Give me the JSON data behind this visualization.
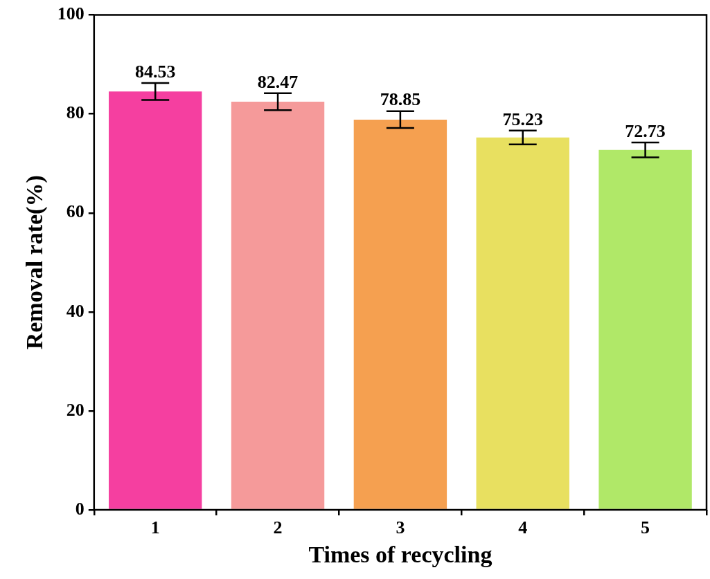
{
  "chart_data": {
    "type": "bar",
    "xlabel": "Times of recycling",
    "ylabel": "Removal rate(%)",
    "categories": [
      "1",
      "2",
      "3",
      "4",
      "5"
    ],
    "values": [
      84.53,
      82.47,
      78.85,
      75.23,
      72.73
    ],
    "colors": [
      "#f53fa0",
      "#f59a9a",
      "#f5a050",
      "#e8e060",
      "#b0e868"
    ],
    "errors": [
      1.7,
      1.7,
      1.7,
      1.4,
      1.5
    ],
    "data_labels": true,
    "ylim": [
      0,
      100
    ],
    "yticks": [
      0,
      20,
      40,
      60,
      80,
      100
    ],
    "grid": false,
    "legend": false
  }
}
